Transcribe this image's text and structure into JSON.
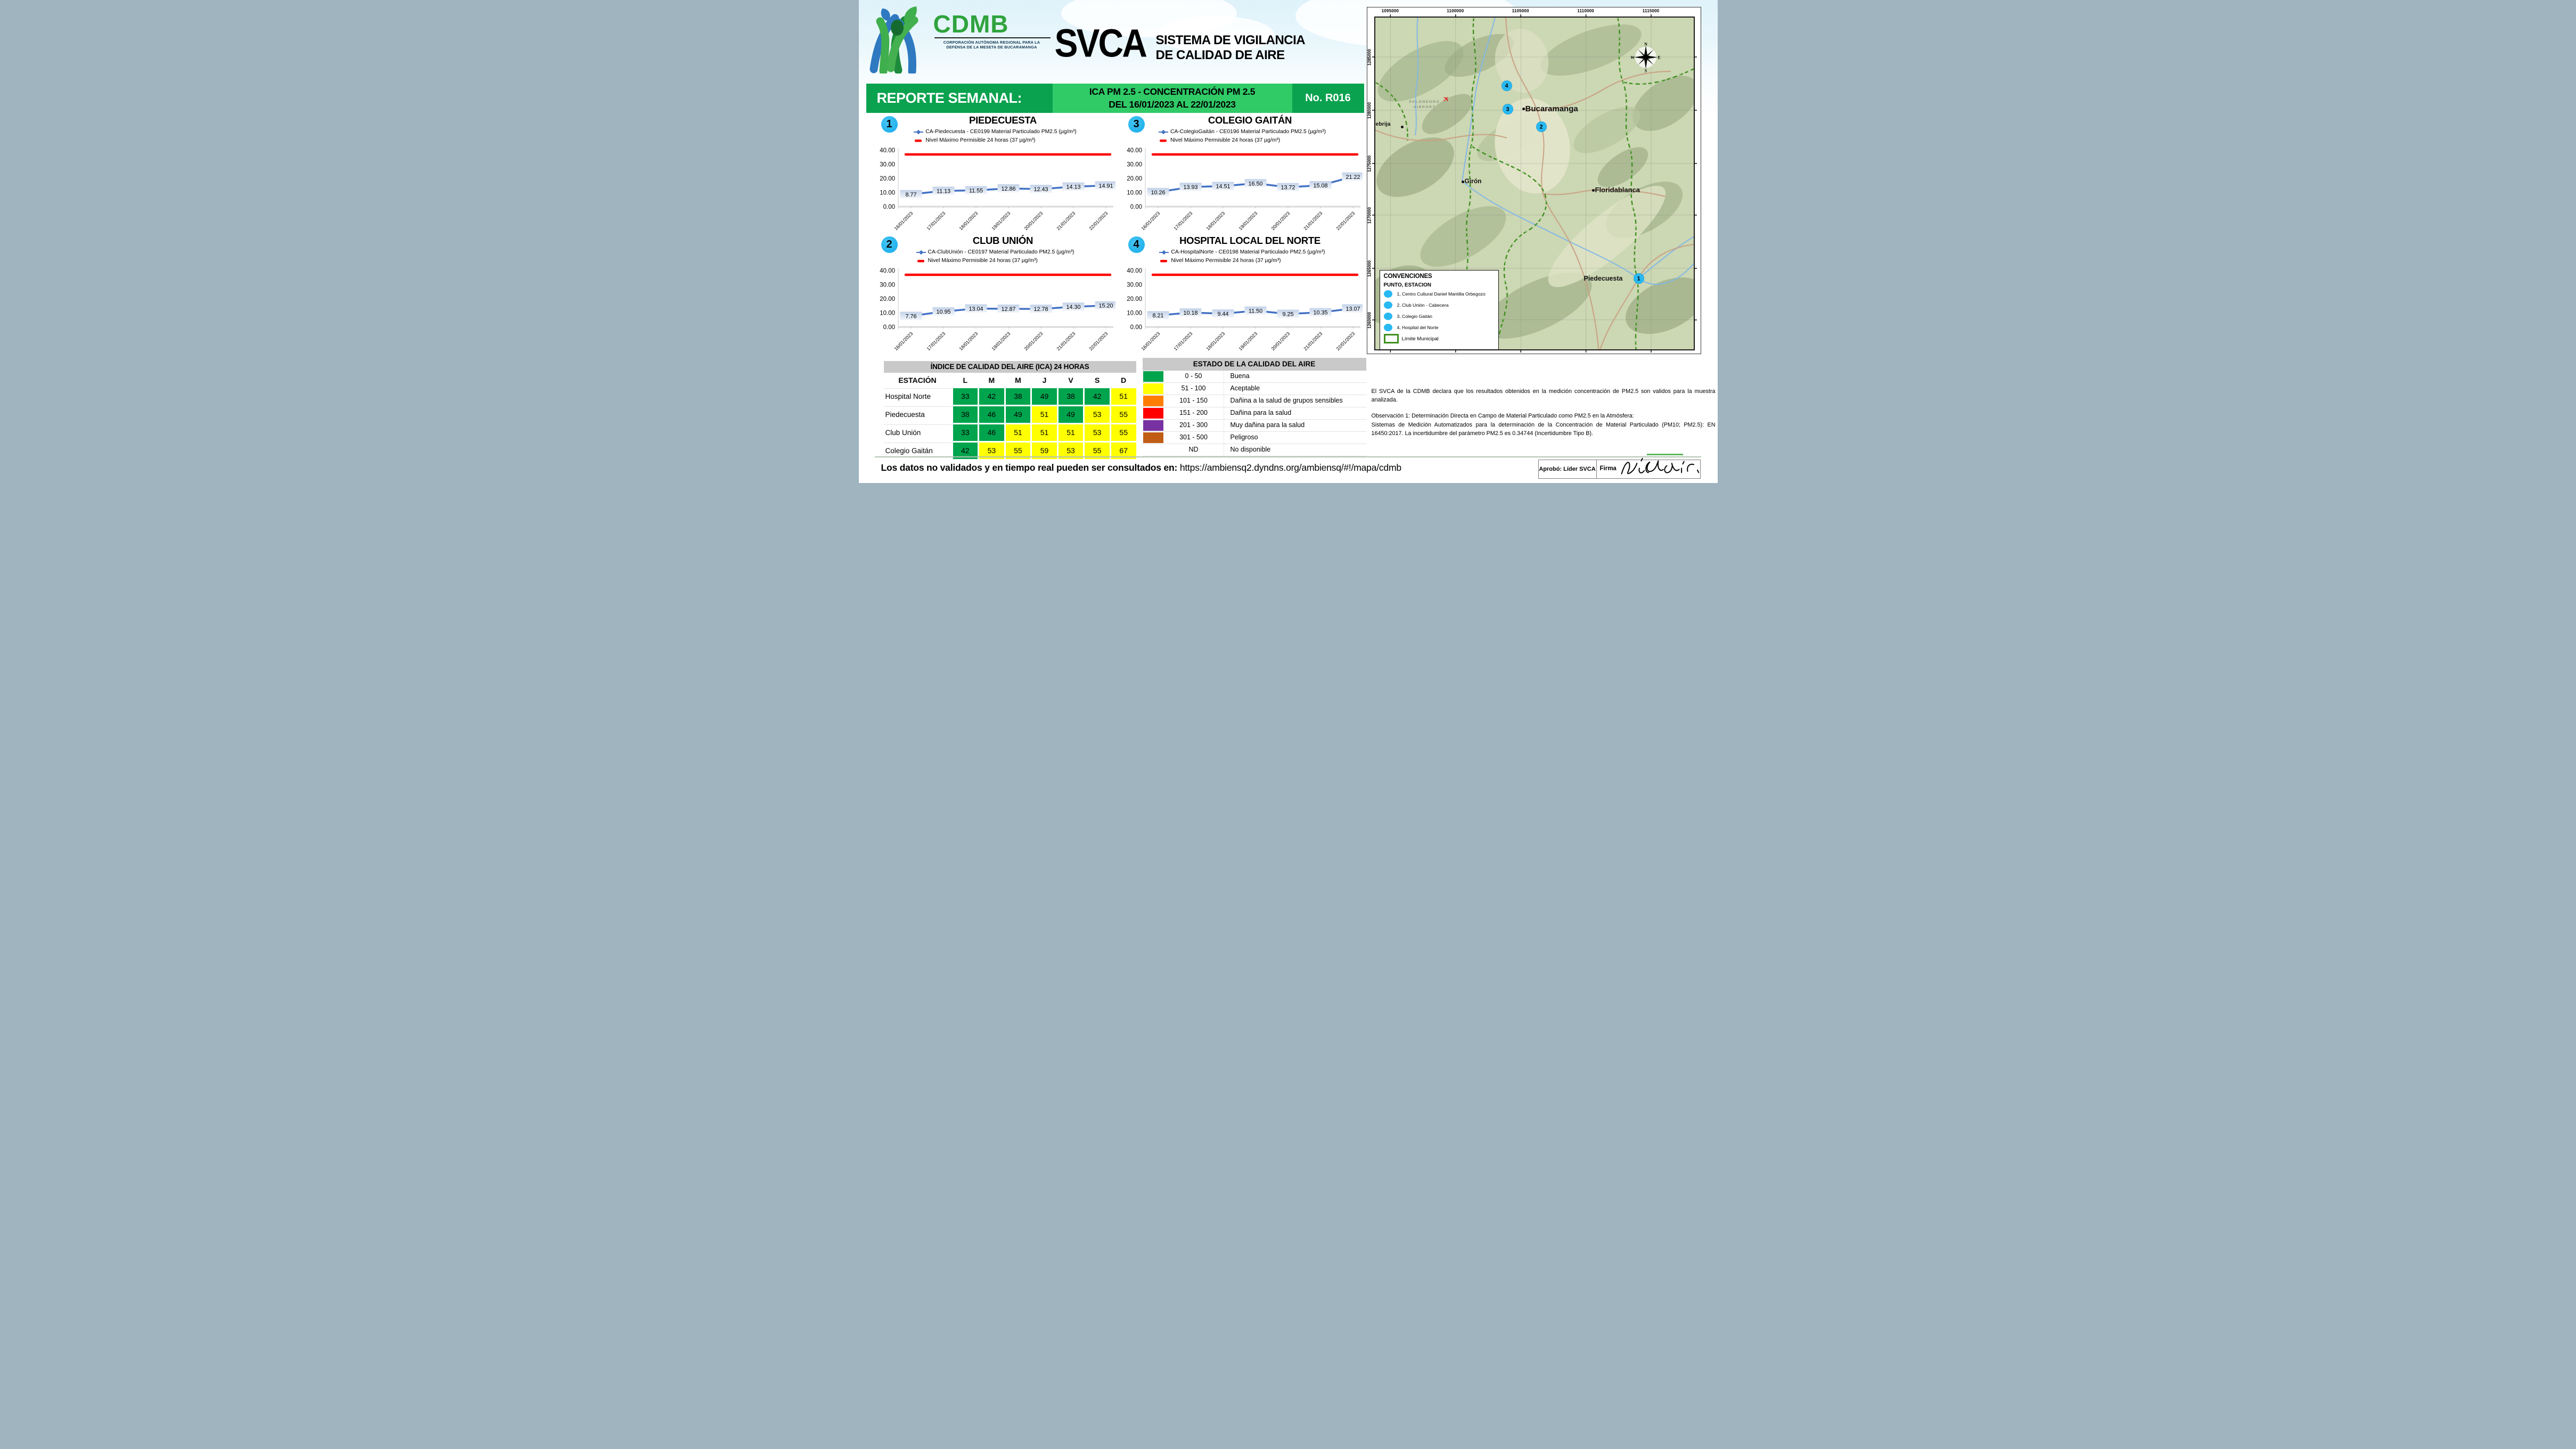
{
  "header": {
    "logo": {
      "acronym": "CDMB",
      "tagline1": "CORPORACIÓN AUTÓNOMA REGIONAL PARA LA",
      "tagline2": "DEFENSA DE LA MESETA DE BUCARAMANGA"
    },
    "title_abbr": "SVCA",
    "subtitle1": "SISTEMA DE VIGILANCIA",
    "subtitle2": "DE CALIDAD DE AIRE"
  },
  "banner": {
    "left": "REPORTE SEMANAL:",
    "mid1": "ICA PM 2.5 - CONCENTRACIÓN PM 2.5",
    "mid2": "DEL 16/01/2023 AL 22/01/2023",
    "right": "No. R016"
  },
  "chart_data": [
    {
      "type": "line",
      "num": "1",
      "title": "PIEDECUESTA",
      "series_label": "CA-Piedecuesta - CE0199 Material Particulado PM2.5 (µg/m³)",
      "limit_label": "Nivel Máximo Permisible 24 horas (37 µg/m³)",
      "limit_value": 37,
      "categories": [
        "16/01/2023",
        "17/01/2023",
        "18/01/2023",
        "19/01/2023",
        "20/01/2023",
        "21/01/2023",
        "22/01/2023"
      ],
      "values": [
        8.77,
        11.13,
        11.55,
        12.86,
        12.43,
        14.13,
        14.91
      ],
      "ylim": [
        0,
        40
      ],
      "ytick_labels": [
        "40.00",
        "30.00",
        "20.00",
        "10.00",
        "0.00"
      ]
    },
    {
      "type": "line",
      "num": "3",
      "title": "COLEGIO GAITÁN",
      "series_label": "CA-ColegioGaitán - CE0196 Material Particulado PM2.5 (µg/m³)",
      "limit_label": "Nivel Máximo Permisible 24 horas (37 µg/m³)",
      "limit_value": 37,
      "categories": [
        "16/01/2023",
        "17/01/2023",
        "18/01/2023",
        "19/01/2023",
        "20/01/2023",
        "21/01/2023",
        "22/01/2023"
      ],
      "values": [
        10.26,
        13.93,
        14.51,
        16.5,
        13.72,
        15.08,
        21.22
      ],
      "ylim": [
        0,
        40
      ],
      "ytick_labels": [
        "40.00",
        "30.00",
        "20.00",
        "10.00",
        "0.00"
      ]
    },
    {
      "type": "line",
      "num": "2",
      "title": "CLUB UNIÓN",
      "series_label": "CA-ClubUnión - CE0197 Material Particulado PM2.5 (µg/m³)",
      "limit_label": "Nivel Máximo Permisible 24 horas (37 µg/m³)",
      "limit_value": 37,
      "categories": [
        "16/01/2023",
        "17/01/2023",
        "18/01/2023",
        "19/01/2023",
        "20/01/2023",
        "21/01/2023",
        "22/01/2023"
      ],
      "values": [
        7.76,
        10.95,
        13.04,
        12.87,
        12.78,
        14.3,
        15.2
      ],
      "ylim": [
        0,
        40
      ],
      "ytick_labels": [
        "40.00",
        "30.00",
        "20.00",
        "10.00",
        "0.00"
      ]
    },
    {
      "type": "line",
      "num": "4",
      "title": "HOSPITAL LOCAL DEL NORTE",
      "series_label": "CA-HospitalNorte - CE0198 Material Particulado PM2.5 (µg/m³)",
      "limit_label": "Nivel Máximo Permisible 24 horas (37 µg/m³)",
      "limit_value": 37,
      "categories": [
        "16/01/2023",
        "17/01/2023",
        "18/01/2023",
        "19/01/2023",
        "20/01/2023",
        "21/01/2023",
        "22/01/2023"
      ],
      "values": [
        8.21,
        10.18,
        9.44,
        11.5,
        9.25,
        10.35,
        13.07
      ],
      "ylim": [
        0,
        40
      ],
      "ytick_labels": [
        "40.00",
        "30.00",
        "20.00",
        "10.00",
        "0.00"
      ]
    }
  ],
  "ica_table": {
    "title": "ÍNDICE DE CALIDAD DEL AIRE (ICA) 24 HORAS",
    "col_headers": [
      "ESTACIÓN",
      "L",
      "M",
      "M",
      "J",
      "V",
      "S",
      "D"
    ],
    "rows": [
      {
        "station": "Hospital Norte",
        "cells": [
          {
            "v": "33",
            "c": "g"
          },
          {
            "v": "42",
            "c": "g"
          },
          {
            "v": "38",
            "c": "g"
          },
          {
            "v": "49",
            "c": "g"
          },
          {
            "v": "38",
            "c": "g"
          },
          {
            "v": "42",
            "c": "g"
          },
          {
            "v": "51",
            "c": "y"
          }
        ]
      },
      {
        "station": "Piedecuesta",
        "cells": [
          {
            "v": "38",
            "c": "g"
          },
          {
            "v": "46",
            "c": "g"
          },
          {
            "v": "49",
            "c": "g"
          },
          {
            "v": "51",
            "c": "y"
          },
          {
            "v": "49",
            "c": "g"
          },
          {
            "v": "53",
            "c": "y"
          },
          {
            "v": "55",
            "c": "y"
          }
        ]
      },
      {
        "station": "Club Unión",
        "cells": [
          {
            "v": "33",
            "c": "g"
          },
          {
            "v": "46",
            "c": "g"
          },
          {
            "v": "51",
            "c": "y"
          },
          {
            "v": "51",
            "c": "y"
          },
          {
            "v": "51",
            "c": "y"
          },
          {
            "v": "53",
            "c": "y"
          },
          {
            "v": "55",
            "c": "y"
          }
        ]
      },
      {
        "station": "Colegio Gaitán",
        "cells": [
          {
            "v": "42",
            "c": "g"
          },
          {
            "v": "53",
            "c": "y"
          },
          {
            "v": "55",
            "c": "y"
          },
          {
            "v": "59",
            "c": "y"
          },
          {
            "v": "53",
            "c": "y"
          },
          {
            "v": "55",
            "c": "y"
          },
          {
            "v": "67",
            "c": "y"
          }
        ]
      }
    ],
    "colors": {
      "g": "#00a44d",
      "y": "#ffff00"
    }
  },
  "estado_table": {
    "title": "ESTADO DE LA CALIDAD DEL AIRE",
    "rows": [
      {
        "color": "#00a44d",
        "range": "0 - 50",
        "label": "Buena"
      },
      {
        "color": "#ffff00",
        "range": "51 - 100",
        "label": "Aceptable"
      },
      {
        "color": "#ff7e00",
        "range": "101 - 150",
        "label": "Dañina a la salud de grupos sensibles"
      },
      {
        "color": "#fe0000",
        "range": "151 - 200",
        "label": "Dañina para la salud"
      },
      {
        "color": "#7731a1",
        "range": "201 - 300",
        "label": "Muy dañina para la salud"
      },
      {
        "color": "#c05c14",
        "range": "301 - 500",
        "label": "Peligroso"
      },
      {
        "color": null,
        "range": "ND",
        "label": "No disponible"
      }
    ]
  },
  "map": {
    "top_coords": [
      "1095000",
      "1100000",
      "1105000",
      "1110000",
      "1115000"
    ],
    "left_coords": [
      "1285000",
      "1280000",
      "1275000",
      "1270000",
      "1265000",
      "1260000"
    ],
    "cities": [
      "Bucaramanga",
      "Girón",
      "Floridablanca",
      "Piedecuesta",
      "ebrija"
    ],
    "markers": [
      "1",
      "2",
      "3",
      "4"
    ],
    "airport_line1": "PALONEGRO",
    "airport_line2": "AIRPORT",
    "compass": [
      "N",
      "E",
      "S",
      "W"
    ],
    "legend": {
      "title": "CONVENCIONES",
      "subtitle": "PUNTO, ESTACION",
      "items": [
        "1, Centro Cultural Daniel Mantilla Orbegozo",
        "2, Club Unión - Cabecera",
        "3, Colegio Gaitán",
        "4, Hospital del Norte"
      ],
      "limit_label": "Límite Municipal"
    }
  },
  "declaration": {
    "p1": "El SVCA  de la CDMB declara que los resultados obtenidos en la medición concentración de PM2.5 son validos para la muestra  analizada.",
    "p2a": "Observación 1: Determinación Directa en Campo de Material Particulado como PM2.5 en la Atmósfera:",
    "p2b": "Sistemas de Medición Automatizados para la  determinación de la Concentración de Material Particulado (PM10; PM2.5): EN 16450:2017. La incertidumbre del parámetro PM2.5 es 0.34744 (Incertidumbre Tipo B)."
  },
  "footer": {
    "bold": "Los datos no validados y en tiempo real pueden ser consultados en: ",
    "url": "https://ambiensq2.dyndns.org/ambiensq/#!/mapa/cdmb",
    "approved_label": "Aprobó: Líder SVCA",
    "signature_label": "Firma"
  }
}
